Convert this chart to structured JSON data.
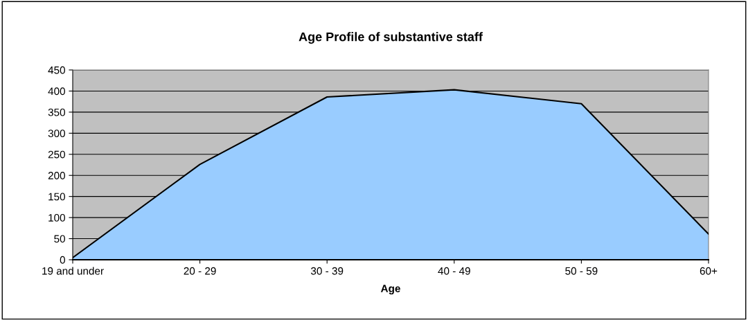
{
  "chart_data": {
    "type": "area",
    "title": "Age Profile of substantive staff",
    "xlabel": "Age",
    "categories": [
      "19 and under",
      "20 - 29",
      "30 - 39",
      "40 - 49",
      "50 - 59",
      "60+"
    ],
    "series": [
      {
        "color": "#99ccff",
        "values": [
          5,
          226,
          386,
          403,
          370,
          61
        ]
      }
    ],
    "ylim": [
      0,
      450
    ],
    "yticks": [
      0,
      50,
      100,
      150,
      200,
      250,
      300,
      350,
      400,
      450
    ],
    "grid": "y",
    "legend": false
  }
}
